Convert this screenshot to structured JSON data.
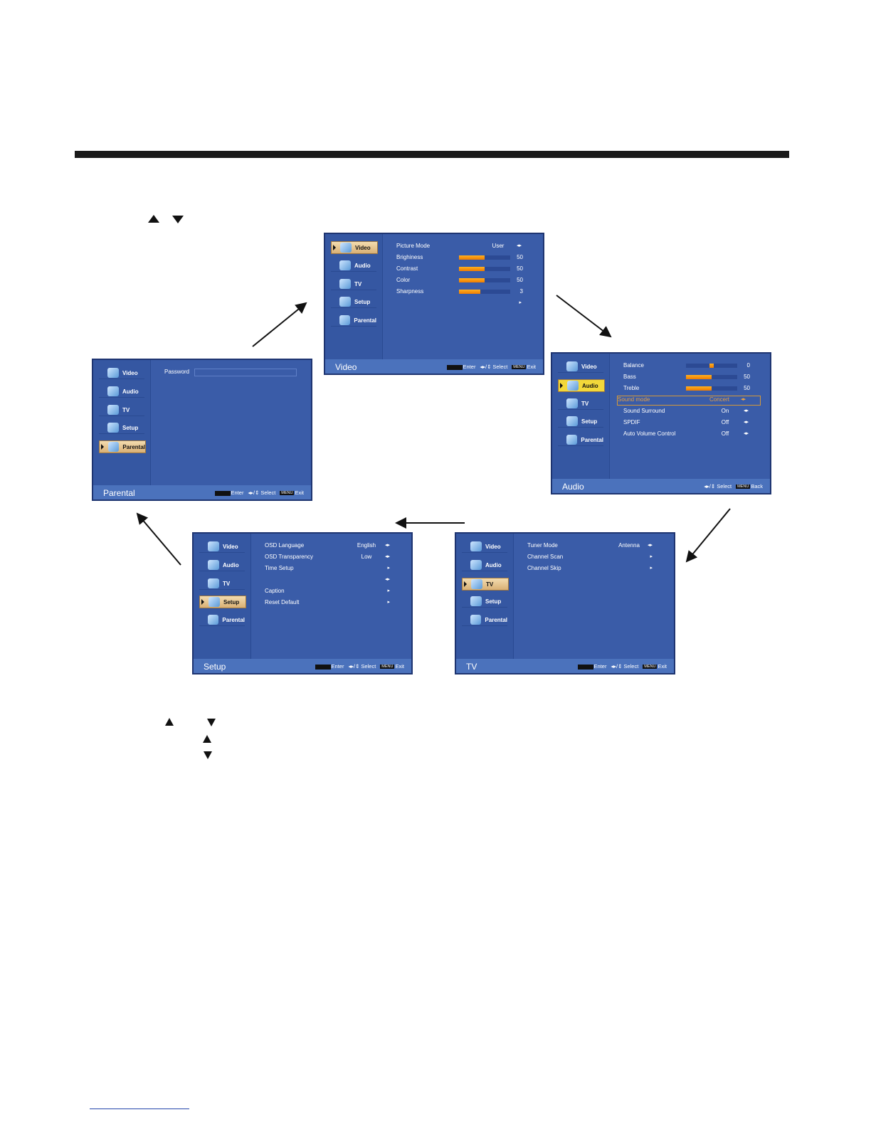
{
  "colors": {
    "osd_bg": "#3a5ca8",
    "osd_footer": "#4b72bc",
    "selected_tab": "#d9b074",
    "audio_selected_tab": "#f2d83a",
    "highlight": "#e8a040",
    "bar_fill": "#f59a10"
  },
  "icons": {
    "nav_up": "triangle-up",
    "nav_down": "triangle-down",
    "video": "video-icon",
    "audio": "speaker-icon",
    "tv": "film-reel-icon",
    "setup": "wrench-icon",
    "parental": "lock-icon"
  },
  "hints": {
    "enter": "Enter",
    "select": "◂▸/⇕ Select",
    "exit_key": "MENU",
    "exit": "Exit",
    "back": "Back"
  },
  "menu_items": [
    "Video",
    "Audio",
    "TV",
    "Setup",
    "Parental"
  ],
  "panels": [
    {
      "id": "video",
      "title": "Video",
      "selected": 0,
      "footer": [
        "enter",
        "select",
        "exit"
      ],
      "rows": [
        {
          "label": "Picture Mode",
          "value": "User",
          "arrow": "◂▸"
        },
        {
          "label": "Brighiness",
          "bar": 50,
          "num": "50"
        },
        {
          "label": "Contrast",
          "bar": 50,
          "num": "50"
        },
        {
          "label": "Color",
          "bar": 50,
          "num": "50"
        },
        {
          "label": "Sharpness",
          "bar": 42,
          "num": "3"
        },
        {
          "label": "",
          "arrow": "▸"
        }
      ]
    },
    {
      "id": "audio",
      "title": "Audio",
      "selected": 1,
      "footer": [
        "select",
        "back"
      ],
      "rows": [
        {
          "label": "Balance",
          "balance": 0,
          "num": "0"
        },
        {
          "label": "Bass",
          "bar": 50,
          "num": "50"
        },
        {
          "label": "Treble",
          "bar": 50,
          "num": "50"
        },
        {
          "label": "Sound mode",
          "value": "Concert",
          "arrow": "◂▸",
          "highlight": true
        },
        {
          "label": "Sound Surround",
          "value": "On",
          "arrow": "◂▸"
        },
        {
          "label": "SPDIF",
          "value": "Off",
          "arrow": "◂▸"
        },
        {
          "label": "Auto Volume Control",
          "value": "Off",
          "arrow": "◂▸"
        }
      ]
    },
    {
      "id": "parental",
      "title": "Parental",
      "selected": 4,
      "footer": [
        "enter",
        "select",
        "exit"
      ],
      "rows": [
        {
          "label": "Password",
          "password": true
        }
      ]
    },
    {
      "id": "setup",
      "title": "Setup",
      "selected": 3,
      "footer": [
        "enter",
        "select",
        "exit"
      ],
      "rows": [
        {
          "label": "OSD Language",
          "value": "English",
          "arrow": "◂▸"
        },
        {
          "label": "OSD Transparency",
          "value": "Low",
          "arrow": "◂▸"
        },
        {
          "label": "Time Setup",
          "arrow": "▸"
        },
        {
          "label": "",
          "arrow": "◂▸"
        },
        {
          "label": "Caption",
          "arrow": "▸"
        },
        {
          "label": "Reset Default",
          "arrow": "▸"
        }
      ]
    },
    {
      "id": "tv",
      "title": "TV",
      "selected": 2,
      "footer": [
        "enter",
        "select",
        "exit"
      ],
      "rows": [
        {
          "label": "Tuner Mode",
          "value": "Antenna",
          "arrow": "◂▸"
        },
        {
          "label": "Channel Scan",
          "arrow": "▸"
        },
        {
          "label": "Channel Skip",
          "arrow": "▸"
        }
      ]
    }
  ]
}
